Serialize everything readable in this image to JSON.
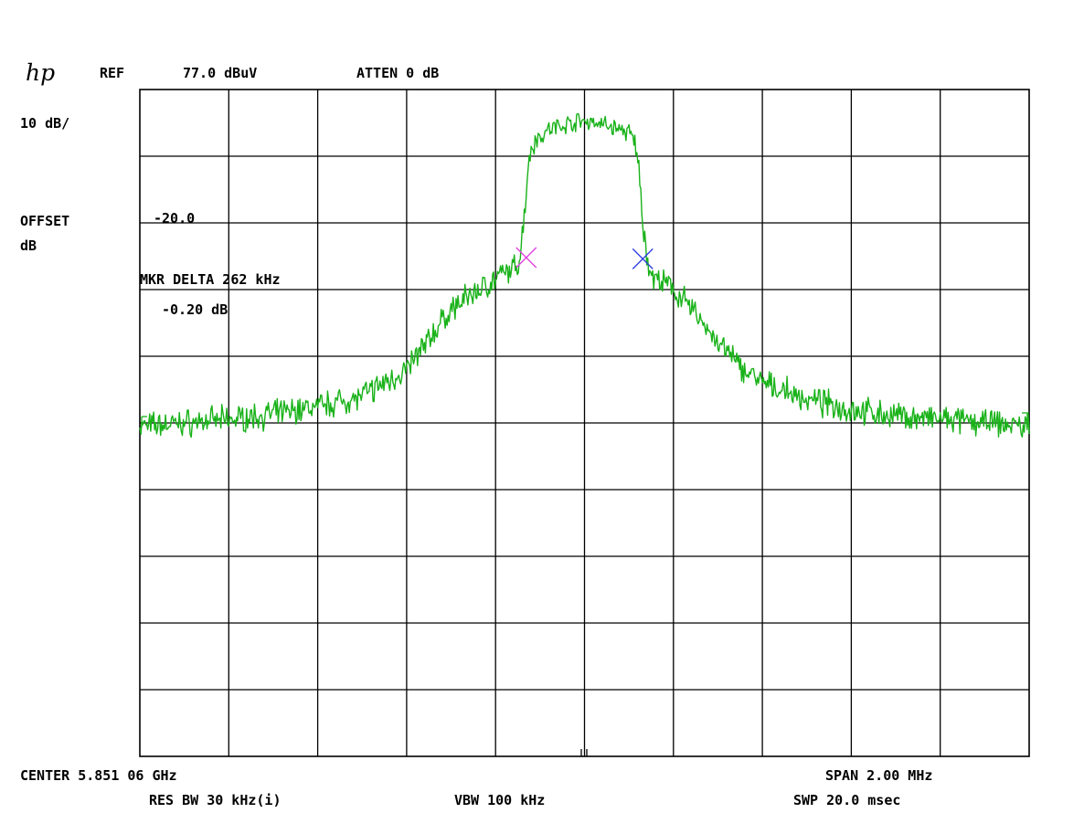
{
  "header": {
    "logo_text": "hp",
    "ref_label": "REF",
    "ref_value": "77.0 dBuV",
    "atten": "ATTEN 0 dB"
  },
  "left_panel": {
    "scale": "10 dB/",
    "offset_label": "OFFSET",
    "offset_unit": "dB",
    "offset_value": "-20.0",
    "marker_label": "MKR DELTA 262 kHz",
    "marker_value": "-0.20 dB"
  },
  "footer": {
    "center": "CENTER 5.851 06 GHz",
    "span": "SPAN 2.00 MHz",
    "res_bw": "RES BW 30 kHz(i)",
    "vbw": "VBW 100 kHz",
    "swp": "SWP 20.0 msec"
  },
  "colors": {
    "trace": "#19b219",
    "marker_1": "#e040e0",
    "marker_2": "#3040e0",
    "grid": "#000000",
    "background": "#ffffff"
  },
  "chart_data": {
    "type": "line",
    "x_unit": "MHz offset from center",
    "y_unit": "dBuV",
    "xlim": [
      -1.0,
      1.0
    ],
    "ylim": [
      -23.0,
      77.0
    ],
    "divisions": {
      "x": 10,
      "y": 10
    },
    "grid": true,
    "series": [
      {
        "x": [
          -1.0,
          -0.9,
          -0.8,
          -0.7,
          -0.6,
          -0.5,
          -0.4,
          -0.35,
          -0.3,
          -0.25,
          -0.2,
          -0.15,
          -0.14,
          -0.13,
          -0.12,
          -0.11,
          -0.1,
          -0.08,
          -0.06,
          -0.04,
          -0.02,
          0.0,
          0.02,
          0.04,
          0.06,
          0.08,
          0.1,
          0.11,
          0.12,
          0.13,
          0.14,
          0.15,
          0.2,
          0.25,
          0.3,
          0.35,
          0.4,
          0.5,
          0.6,
          0.7,
          0.8,
          0.9,
          1.0
        ],
        "y": [
          26.5,
          27.0,
          27.5,
          28.3,
          29.5,
          31.0,
          35.0,
          39.5,
          44.0,
          46.5,
          48.5,
          50.5,
          55.0,
          63.0,
          68.5,
          69.5,
          70.0,
          71.0,
          71.5,
          71.8,
          72.2,
          72.3,
          72.2,
          71.8,
          71.5,
          71.0,
          70.5,
          69.5,
          67.0,
          58.0,
          52.0,
          49.0,
          47.0,
          43.5,
          39.0,
          35.5,
          33.0,
          30.5,
          29.0,
          28.0,
          27.5,
          27.0,
          26.5
        ]
      }
    ],
    "markers": [
      {
        "x": -0.131,
        "y": 51.8
      },
      {
        "x": 0.131,
        "y": 51.6
      }
    ]
  }
}
